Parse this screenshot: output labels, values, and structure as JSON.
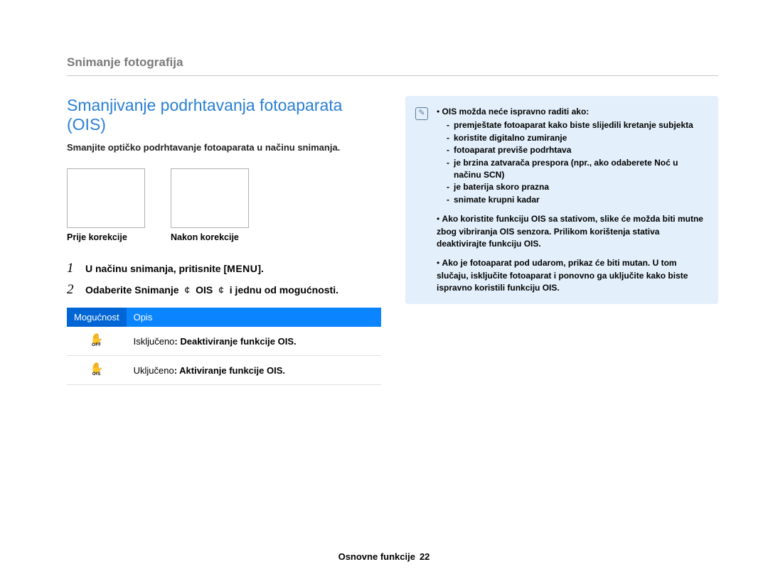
{
  "breadcrumb": "Snimanje fotografija",
  "section": {
    "title": "Smanjivanje podrhtavanja fotoaparata (OIS)",
    "subtitle": "Smanjite optičko podrhtavanje fotoaparata u načinu snimanja."
  },
  "compare": {
    "before": "Prije korekcije",
    "after": "Nakon korekcije"
  },
  "steps": {
    "s1_num": "1",
    "s1_a": "U načinu snimanja, pritisnite [",
    "s1_menu": "MENU",
    "s1_b": "].",
    "s2_num": "2",
    "s2_a": "Odaberite ",
    "s2_b": "Snimanje",
    "s2_arrow1": " ¢ ",
    "s2_c": "OIS",
    "s2_arrow2": " ¢ ",
    "s2_d": "i jednu od mogućnosti."
  },
  "table": {
    "col1": "Mogućnost",
    "col2": "Opis",
    "rows": [
      {
        "icon_sub": "OFF",
        "label": "Isključeno",
        "desc": ": Deaktiviranje funkcije OIS."
      },
      {
        "icon_sub": "OIS",
        "label": "Uključeno",
        "desc": ": Aktiviranje funkcije OIS."
      }
    ]
  },
  "notes": {
    "b1": {
      "head": "OIS možda neće ispravno raditi ako:",
      "items": [
        "premještate fotoaparat kako biste slijedili kretanje subjekta",
        "koristite digitalno zumiranje",
        "fotoaparat previše podrhtava",
        "je brzina zatvarača prespora (npr., ako odaberete Noć u načinu SCN)",
        "je baterija skoro prazna",
        "snimate krupni kadar"
      ]
    },
    "b2": "Ako koristite funkciju OIS sa stativom, slike će možda biti mutne zbog vibriranja OIS senzora. Prilikom korištenja stativa deaktivirajte funkciju OIS.",
    "b3": "Ako je fotoaparat pod udarom, prikaz će biti mutan. U tom slučaju, isključite fotoaparat i ponovno ga uključite kako biste ispravno koristili funkciju OIS."
  },
  "footer": {
    "label": "Osnovne funkcije",
    "page": "22"
  },
  "colors": {
    "accent": "#2a7fd4",
    "table_header": "#0a84ff",
    "table_header_dark": "#0066d6",
    "note_bg": "#e3f0fb"
  }
}
